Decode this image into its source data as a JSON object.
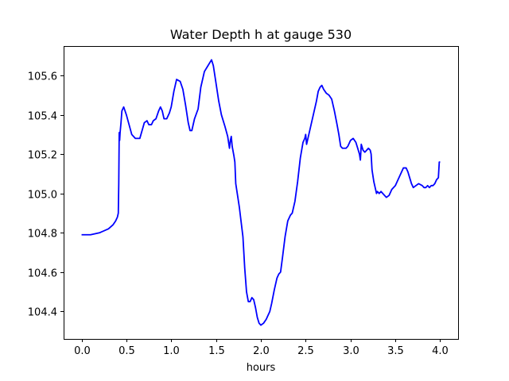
{
  "chart_data": {
    "type": "line",
    "title": "Water Depth h at gauge 530",
    "xlabel": "hours",
    "ylabel": "",
    "xlim": [
      -0.2,
      4.2
    ],
    "ylim": [
      104.26,
      105.75
    ],
    "xticks": [
      0.0,
      0.5,
      1.0,
      1.5,
      2.0,
      2.5,
      3.0,
      3.5,
      4.0
    ],
    "xtick_labels": [
      "0.0",
      "0.5",
      "1.0",
      "1.5",
      "2.0",
      "2.5",
      "3.0",
      "3.5",
      "4.0"
    ],
    "yticks": [
      104.4,
      104.6,
      104.8,
      105.0,
      105.2,
      105.4,
      105.6
    ],
    "ytick_labels": [
      "104.4",
      "104.6",
      "104.8",
      "105.0",
      "105.2",
      "105.4",
      "105.6"
    ],
    "grid": false,
    "series": [
      {
        "color": "#0000ff",
        "x": [
          0.0,
          0.1,
          0.2,
          0.3,
          0.35,
          0.38,
          0.4,
          0.41,
          0.415,
          0.42,
          0.425,
          0.43,
          0.44,
          0.45,
          0.47,
          0.5,
          0.53,
          0.56,
          0.6,
          0.65,
          0.7,
          0.73,
          0.75,
          0.78,
          0.8,
          0.83,
          0.86,
          0.88,
          0.9,
          0.92,
          0.95,
          0.98,
          1.0,
          1.03,
          1.06,
          1.1,
          1.13,
          1.16,
          1.19,
          1.21,
          1.23,
          1.26,
          1.3,
          1.33,
          1.37,
          1.41,
          1.45,
          1.47,
          1.5,
          1.53,
          1.56,
          1.6,
          1.63,
          1.65,
          1.66,
          1.67,
          1.68,
          1.7,
          1.71,
          1.72,
          1.73,
          1.76,
          1.8,
          1.82,
          1.84,
          1.86,
          1.88,
          1.9,
          1.92,
          1.94,
          1.96,
          1.98,
          2.0,
          2.03,
          2.06,
          2.08,
          2.1,
          2.12,
          2.15,
          2.18,
          2.2,
          2.22,
          2.24,
          2.27,
          2.3,
          2.33,
          2.35,
          2.38,
          2.41,
          2.44,
          2.47,
          2.49,
          2.5,
          2.51,
          2.53,
          2.56,
          2.59,
          2.62,
          2.64,
          2.66,
          2.68,
          2.7,
          2.73,
          2.76,
          2.79,
          2.82,
          2.85,
          2.87,
          2.89,
          2.91,
          2.93,
          2.95,
          2.97,
          3.0,
          3.03,
          3.06,
          3.08,
          3.1,
          3.11,
          3.12,
          3.14,
          3.16,
          3.18,
          3.2,
          3.22,
          3.23,
          3.24,
          3.25,
          3.26,
          3.27,
          3.28,
          3.29,
          3.3,
          3.32,
          3.34,
          3.36,
          3.38,
          3.4,
          3.43,
          3.46,
          3.5,
          3.53,
          3.56,
          3.59,
          3.62,
          3.64,
          3.66,
          3.68,
          3.7,
          3.73,
          3.76,
          3.8,
          3.82,
          3.84,
          3.86,
          3.88,
          3.9,
          3.92,
          3.94,
          3.96,
          3.98,
          3.99,
          4.0
        ],
        "y": [
          104.79,
          104.79,
          104.8,
          104.82,
          104.84,
          104.86,
          104.88,
          104.9,
          105.05,
          105.31,
          105.27,
          105.31,
          105.36,
          105.42,
          105.44,
          105.4,
          105.35,
          105.3,
          105.28,
          105.28,
          105.36,
          105.37,
          105.35,
          105.35,
          105.37,
          105.38,
          105.42,
          105.44,
          105.42,
          105.38,
          105.38,
          105.41,
          105.44,
          105.52,
          105.58,
          105.57,
          105.53,
          105.45,
          105.36,
          105.32,
          105.32,
          105.38,
          105.43,
          105.54,
          105.62,
          105.65,
          105.68,
          105.65,
          105.56,
          105.47,
          105.4,
          105.34,
          105.29,
          105.23,
          105.27,
          105.29,
          105.24,
          105.19,
          105.16,
          105.05,
          105.02,
          104.93,
          104.78,
          104.62,
          104.5,
          104.45,
          104.45,
          104.47,
          104.46,
          104.42,
          104.37,
          104.34,
          104.33,
          104.34,
          104.36,
          104.38,
          104.4,
          104.44,
          104.51,
          104.57,
          104.59,
          104.6,
          104.67,
          104.78,
          104.86,
          104.89,
          104.9,
          104.96,
          105.06,
          105.18,
          105.26,
          105.28,
          105.3,
          105.25,
          105.29,
          105.35,
          105.41,
          105.47,
          105.52,
          105.54,
          105.55,
          105.53,
          105.51,
          105.5,
          105.48,
          105.42,
          105.35,
          105.3,
          105.24,
          105.23,
          105.23,
          105.23,
          105.24,
          105.27,
          105.28,
          105.26,
          105.23,
          105.2,
          105.17,
          105.25,
          105.22,
          105.21,
          105.22,
          105.23,
          105.22,
          105.2,
          105.12,
          105.09,
          105.06,
          105.04,
          105.02,
          105.0,
          105.01,
          105.0,
          105.01,
          105.0,
          104.99,
          104.98,
          104.99,
          105.02,
          105.04,
          105.07,
          105.1,
          105.13,
          105.13,
          105.11,
          105.08,
          105.05,
          105.03,
          105.04,
          105.05,
          105.04,
          105.03,
          105.03,
          105.04,
          105.03,
          105.04,
          105.04,
          105.05,
          105.07,
          105.08,
          105.16,
          105.16
        ]
      }
    ]
  }
}
